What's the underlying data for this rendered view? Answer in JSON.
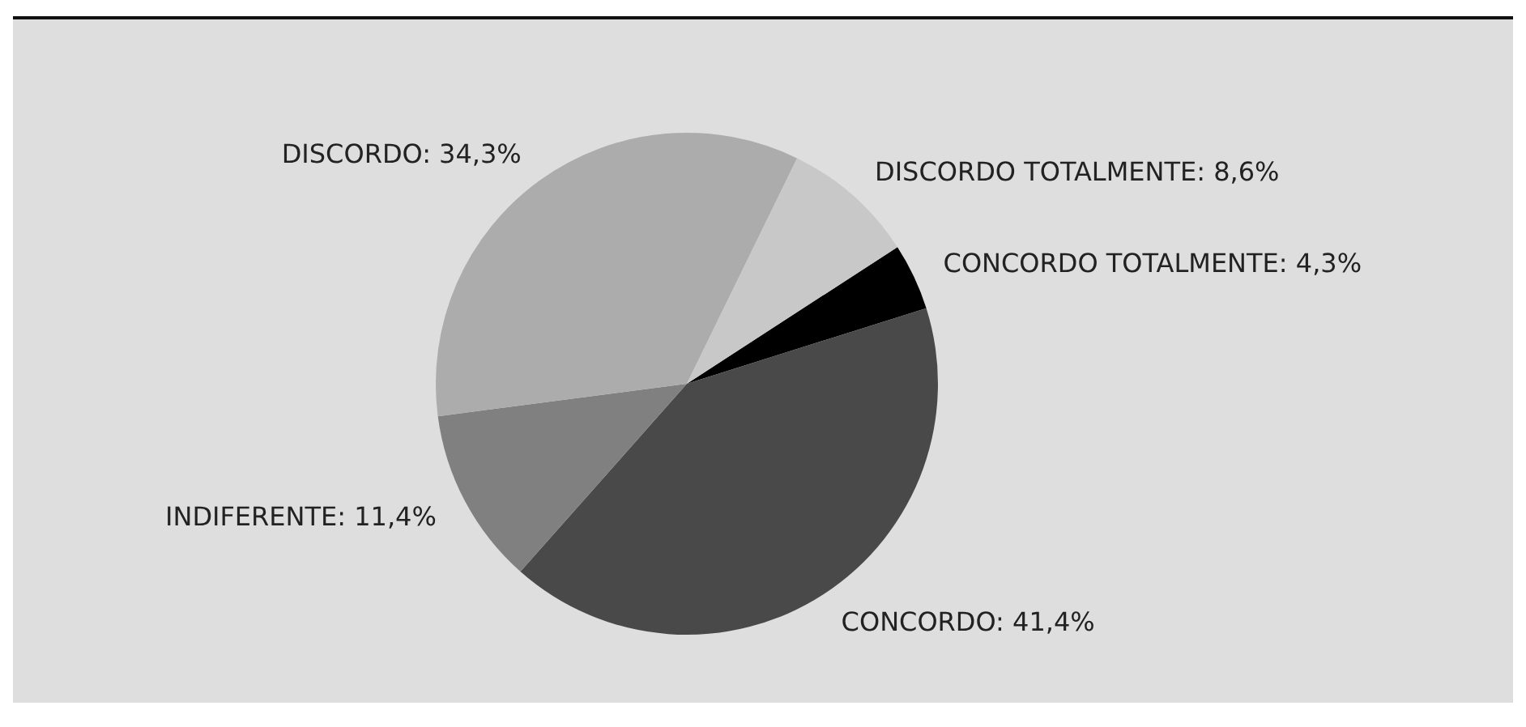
{
  "chart_data": {
    "type": "pie",
    "categories": [
      "CONCORDO TOTALMENTE",
      "CONCORDO",
      "INDIFERENTE",
      "DISCORDO",
      "DISCORDO TOTALMENTE"
    ],
    "values": [
      4.3,
      41.4,
      11.4,
      34.3,
      8.6
    ],
    "value_labels": [
      "4,3%",
      "41,4%",
      "11,4%",
      "34,3%",
      "8,6%"
    ],
    "colors": [
      "#000000",
      "#494949",
      "#808080",
      "#acacac",
      "#c8c8c8"
    ]
  }
}
